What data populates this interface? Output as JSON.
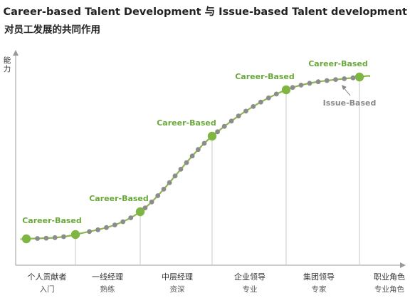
{
  "title": "Career-based Talent Development 与 Issue-based Talent development",
  "subtitle": "对员工发展的共同作用",
  "chart_data": {
    "type": "line",
    "ylabel": "能力",
    "xlabel": "",
    "x_categories": [
      {
        "main": "个人贡献者",
        "sub": "入门"
      },
      {
        "main": "一线经理",
        "sub": "熟练"
      },
      {
        "main": "中层经理",
        "sub": "资深"
      },
      {
        "main": "企业领导",
        "sub": "专业"
      },
      {
        "main": "集团领导",
        "sub": "专家"
      },
      {
        "main": "职业角色",
        "sub": "专业角色"
      }
    ],
    "series": [
      {
        "type": "curve",
        "description": "capability growth",
        "x": [
          0,
          0.7,
          1.6,
          2.6,
          3.5,
          4.5
        ],
        "y": [
          0.06,
          0.12,
          0.25,
          0.6,
          0.87,
          0.94
        ]
      }
    ],
    "stage_markers": [
      {
        "label": "Career-Based",
        "x": 0.0,
        "y": 0.06
      },
      {
        "label": "Career-Based",
        "x": 0.7,
        "y": 0.12
      },
      {
        "label": "Career-Based",
        "x": 1.6,
        "y": 0.25
      },
      {
        "label": "Career-Based",
        "x": 2.6,
        "y": 0.6
      },
      {
        "label": "Career-Based",
        "x": 3.5,
        "y": 0.87
      },
      {
        "label": "Career-Based",
        "x": 4.5,
        "y": 0.94
      }
    ],
    "annotation": {
      "label": "Issue-Based",
      "points_to": "small grey dots"
    },
    "colors": {
      "curve": "#8ab84a",
      "major_dot": "#7fb543",
      "minor_dot": "#8c8c8c",
      "axis": "#999999",
      "guide": "#c8c8c8"
    }
  }
}
